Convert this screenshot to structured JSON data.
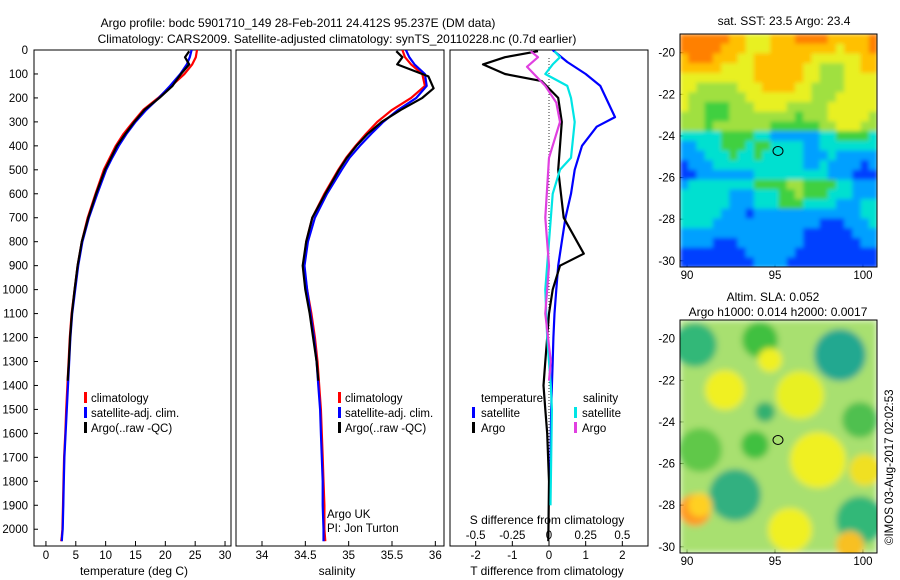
{
  "header": {
    "title_line1": "Argo profile: bodc 5901710_149 28-Feb-2011 24.412S 95.237E (DM data)",
    "title_line2": "Climatology: CARS2009. Satellite-adjusted climatology: synTS_20110228.nc (0.7d earlier)"
  },
  "colors": {
    "climatology": "#ff0000",
    "satellite": "#0000ff",
    "argo": "#000000",
    "sal_satellite": "#00e5e5",
    "sal_argo": "#e040e0"
  },
  "chart_data": [
    {
      "id": "temperature",
      "type": "line",
      "xlabel": "temperature (deg C)",
      "xlim": [
        -2,
        31
      ],
      "xticks": [
        0,
        5,
        10,
        15,
        20,
        25,
        30
      ],
      "ylim": [
        2070,
        0
      ],
      "yticks": [
        0,
        100,
        200,
        300,
        400,
        500,
        600,
        700,
        800,
        900,
        1000,
        1100,
        1200,
        1300,
        1400,
        1500,
        1600,
        1700,
        1800,
        1900,
        2000
      ],
      "series": [
        {
          "name": "climatology",
          "color": "#ff0000",
          "x": [
            25.3,
            25.1,
            24.5,
            23.2,
            21.0,
            18.8,
            16.3,
            14.6,
            13.0,
            11.7,
            10.7,
            9.7,
            8.3,
            7.0,
            6.0,
            5.3,
            4.8,
            4.3,
            4.0,
            3.8,
            3.6,
            3.4,
            3.25,
            3.05,
            2.95,
            2.85,
            2.75,
            2.65,
            2.55
          ],
          "y": [
            0,
            30,
            60,
            100,
            150,
            200,
            250,
            300,
            350,
            400,
            450,
            500,
            600,
            700,
            800,
            900,
            1000,
            1100,
            1200,
            1300,
            1400,
            1500,
            1600,
            1700,
            1800,
            1900,
            2000,
            2030,
            2050
          ]
        },
        {
          "name": "satellite-adj. clim.",
          "color": "#0000ff",
          "x": [
            24.4,
            24.1,
            23.6,
            22.5,
            20.8,
            18.9,
            16.8,
            15.0,
            13.5,
            12.2,
            11.1,
            10.1,
            8.6,
            7.2,
            6.1,
            5.4,
            4.9,
            4.4,
            4.1,
            3.9,
            3.7,
            3.5,
            3.3,
            3.1,
            3.0,
            2.9,
            2.8,
            2.7,
            2.65
          ],
          "y": [
            0,
            30,
            60,
            100,
            150,
            200,
            250,
            300,
            350,
            400,
            450,
            500,
            600,
            700,
            800,
            900,
            1000,
            1100,
            1200,
            1300,
            1400,
            1500,
            1600,
            1700,
            1800,
            1900,
            2000,
            2030,
            2050
          ]
        },
        {
          "name": "Argo(..raw -QC)",
          "color": "#000000",
          "x": [
            24.0,
            23.3,
            24.0,
            22.6,
            21.2,
            19.0,
            16.5,
            14.8,
            13.3,
            11.9,
            10.9,
            9.9,
            8.4,
            7.1,
            6.0,
            5.3,
            4.8,
            4.35,
            4.05,
            3.85,
            3.65
          ],
          "y": [
            5,
            30,
            60,
            100,
            150,
            200,
            250,
            300,
            350,
            400,
            450,
            500,
            600,
            700,
            800,
            900,
            1000,
            1100,
            1200,
            1300,
            1380
          ]
        }
      ],
      "legend": [
        "climatology",
        "satellite-adj. clim.",
        "Argo(..raw -QC)"
      ]
    },
    {
      "id": "salinity",
      "type": "line",
      "xlabel": "salinity",
      "xlim": [
        33.7,
        36.1
      ],
      "xticks": [
        34,
        34.5,
        35,
        35.5,
        36
      ],
      "ylim": [
        2070,
        0
      ],
      "series": [
        {
          "name": "climatology",
          "color": "#ff0000",
          "x": [
            35.62,
            35.65,
            35.72,
            35.85,
            35.88,
            35.72,
            35.5,
            35.33,
            35.2,
            35.08,
            34.97,
            34.88,
            34.72,
            34.58,
            34.51,
            34.48,
            34.52,
            34.57,
            34.61,
            34.64,
            34.66,
            34.68,
            34.69,
            34.7,
            34.71,
            34.72,
            34.72,
            34.73
          ],
          "y": [
            0,
            30,
            60,
            100,
            150,
            200,
            250,
            300,
            350,
            400,
            450,
            500,
            600,
            700,
            800,
            900,
            1000,
            1100,
            1200,
            1300,
            1400,
            1500,
            1600,
            1700,
            1800,
            1900,
            2000,
            2050
          ]
        },
        {
          "name": "satellite-adj. clim.",
          "color": "#0000ff",
          "x": [
            35.66,
            35.7,
            35.76,
            35.88,
            35.9,
            35.78,
            35.57,
            35.4,
            35.26,
            35.13,
            35.01,
            34.92,
            34.75,
            34.61,
            34.53,
            34.49,
            34.52,
            34.56,
            34.6,
            34.63,
            34.65,
            34.67,
            34.68,
            34.69,
            34.7,
            34.7,
            34.71,
            34.71
          ],
          "y": [
            0,
            30,
            60,
            100,
            150,
            200,
            250,
            300,
            350,
            400,
            450,
            500,
            600,
            700,
            800,
            900,
            1000,
            1100,
            1200,
            1300,
            1400,
            1500,
            1600,
            1700,
            1800,
            1900,
            2000,
            2050
          ]
        },
        {
          "name": "Argo(..raw -QC)",
          "color": "#000000",
          "x": [
            35.55,
            35.62,
            35.56,
            35.92,
            35.98,
            35.85,
            35.6,
            35.38,
            35.22,
            35.09,
            34.98,
            34.89,
            34.73,
            34.58,
            34.51,
            34.47,
            34.5,
            34.55,
            34.59,
            34.63,
            34.65
          ],
          "y": [
            5,
            30,
            60,
            110,
            160,
            200,
            250,
            300,
            350,
            400,
            450,
            500,
            600,
            700,
            800,
            900,
            1000,
            1100,
            1200,
            1300,
            1380
          ]
        }
      ],
      "legend": [
        "climatology",
        "satellite-adj. clim.",
        "Argo(..raw -QC)"
      ],
      "annotations": [
        "Argo UK",
        "PI: Jon Turton"
      ]
    },
    {
      "id": "differences",
      "type": "line",
      "xlabel": "T difference from climatology",
      "xlabel_top": "S difference from climatology",
      "xlim": [
        -2.7,
        2.7
      ],
      "xticks": [
        -2,
        -1,
        0,
        1,
        2
      ],
      "xticks_top_positions": [
        -2,
        -1,
        0,
        1,
        2
      ],
      "xticks_top_labels": [
        "-0.5",
        "-0.25",
        "0",
        "0.25",
        "0.5"
      ],
      "ylim": [
        2070,
        0
      ],
      "series": [
        {
          "name": "temperature satellite",
          "color": "#0000ff",
          "x": [
            0.1,
            0.5,
            1.0,
            1.4,
            1.8,
            1.3,
            0.9,
            0.7,
            0.6,
            0.45,
            0.35,
            0.25,
            0.2,
            0.15,
            0.12,
            0.1,
            0.08,
            0.06,
            0.05,
            0.04,
            0.03
          ],
          "y": [
            0,
            50,
            100,
            150,
            280,
            320,
            400,
            500,
            600,
            700,
            800,
            900,
            1000,
            1100,
            1200,
            1300,
            1400,
            1500,
            1600,
            1700,
            1800
          ]
        },
        {
          "name": "temperature Argo",
          "color": "#000000",
          "x": [
            -0.3,
            -1.2,
            -1.8,
            -1.2,
            -0.2,
            0.25,
            0.35,
            0.25,
            0.4,
            0.95,
            0.3,
            0.1,
            0.0,
            -0.05,
            -0.1,
            -0.15,
            -0.1,
            -0.05,
            0.0,
            -0.02
          ],
          "y": [
            5,
            30,
            60,
            100,
            130,
            200,
            300,
            500,
            700,
            850,
            900,
            1000,
            1100,
            1200,
            1300,
            1400,
            1500,
            1600,
            1800,
            2050
          ]
        },
        {
          "name": "salinity satellite",
          "color": "#00e5e5",
          "x": [
            0.15,
            0.3,
            0.1,
            -0.1,
            0.5,
            0.6,
            0.7,
            0.6,
            0.3,
            0.1,
            0.0,
            -0.1,
            -0.05,
            0.0,
            0.05,
            0.08,
            0.06,
            0.04
          ],
          "y": [
            5,
            30,
            60,
            100,
            150,
            200,
            300,
            450,
            500,
            600,
            800,
            1000,
            1200,
            1300,
            1400,
            1500,
            1700,
            1900
          ]
        },
        {
          "name": "salinity Argo",
          "color": "#e040e0",
          "x": [
            -0.5,
            -0.3,
            -0.6,
            -0.1,
            0.2,
            0.3,
            0.0,
            -0.1,
            0.0,
            -0.1,
            0.05,
            0.0
          ],
          "y": [
            5,
            30,
            70,
            150,
            220,
            300,
            450,
            700,
            900,
            1100,
            1300,
            1380
          ]
        }
      ],
      "legend_temperature": {
        "heading": "temperature",
        "items": [
          "satellite",
          "Argo"
        ]
      },
      "legend_salinity": {
        "heading": "salinity",
        "items": [
          "satellite",
          "Argo"
        ]
      }
    },
    {
      "id": "sst_map",
      "type": "heatmap",
      "title": "sat. SST: 23.5  Argo: 23.4",
      "xlim": [
        89.6,
        100.8
      ],
      "ylim": [
        -30.3,
        -19.1
      ],
      "xticks": [
        90,
        95,
        100
      ],
      "yticks": [
        -20,
        -22,
        -24,
        -26,
        -28,
        -30
      ],
      "marker": {
        "lon": 95.237,
        "lat": -24.412
      }
    },
    {
      "id": "sla_map",
      "type": "heatmap",
      "title_line1": "Altim. SLA: 0.052",
      "title_line2": "Argo h1000: 0.014 h2000: 0.0017",
      "xlim": [
        89.6,
        100.8
      ],
      "ylim": [
        -30.3,
        -19.1
      ],
      "xticks": [
        90,
        95,
        100
      ],
      "yticks": [
        -20,
        -22,
        -24,
        -26,
        -28,
        -30
      ],
      "marker": {
        "lon": 95.237,
        "lat": -24.412
      }
    }
  ],
  "footer": {
    "credit": "©IMOS 03-Aug-2017 02:02:53"
  }
}
